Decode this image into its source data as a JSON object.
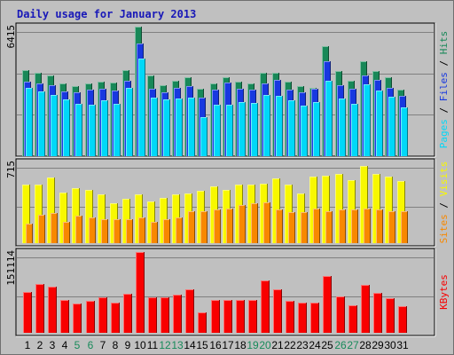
{
  "chart_data": [
    {
      "type": "bar",
      "title": "Daily usage for January 2013",
      "ymax_label": "6415",
      "legend": [
        "Pages",
        "Files",
        "Hits"
      ],
      "legend_colors": {
        "Pages": "#00d8f8",
        "Files": "#1838e0",
        "Hits": "#188858"
      },
      "ylim": [
        0,
        6415
      ],
      "categories": [
        "1",
        "2",
        "3",
        "4",
        "5",
        "6",
        "7",
        "8",
        "9",
        "10",
        "11",
        "12",
        "13",
        "14",
        "15",
        "16",
        "17",
        "18",
        "19",
        "20",
        "21",
        "22",
        "23",
        "24",
        "25",
        "26",
        "27",
        "28",
        "29",
        "30",
        "31"
      ],
      "weekend_days": [
        "5",
        "6",
        "12",
        "13",
        "19",
        "20",
        "26",
        "27"
      ],
      "series": [
        {
          "name": "Hits",
          "values": [
            4250,
            4150,
            3980,
            3600,
            3480,
            3600,
            3700,
            3650,
            4250,
            6415,
            4000,
            3500,
            3750,
            3900,
            3350,
            3600,
            3900,
            3700,
            3600,
            4150,
            4150,
            3700,
            3450,
            3400,
            5430,
            4200,
            3750,
            4700,
            4200,
            3900,
            3300
          ]
        },
        {
          "name": "Files",
          "values": [
            3700,
            3600,
            3500,
            3200,
            3150,
            3300,
            3350,
            3250,
            3750,
            5600,
            3350,
            3150,
            3400,
            3450,
            2900,
            3300,
            3650,
            3350,
            3300,
            3600,
            3800,
            3300,
            3150,
            3350,
            4700,
            3500,
            3350,
            4000,
            3800,
            3400,
            3000
          ]
        },
        {
          "name": "Pages",
          "values": [
            3400,
            3200,
            3050,
            2800,
            2600,
            2550,
            2750,
            2600,
            3400,
            4850,
            2900,
            2800,
            2850,
            2900,
            1950,
            2550,
            2550,
            2700,
            2650,
            3050,
            3000,
            2750,
            2500,
            2700,
            3750,
            2850,
            2600,
            3550,
            3250,
            2950,
            2400
          ]
        }
      ]
    },
    {
      "type": "bar",
      "ymax_label": "715",
      "legend": [
        "Sites",
        "Visits"
      ],
      "legend_colors": {
        "Sites": "#f88800",
        "Visits": "#f8f800"
      },
      "ylim": [
        0,
        715
      ],
      "categories": [
        "1",
        "2",
        "3",
        "4",
        "5",
        "6",
        "7",
        "8",
        "9",
        "10",
        "11",
        "12",
        "13",
        "14",
        "15",
        "16",
        "17",
        "18",
        "19",
        "20",
        "21",
        "22",
        "23",
        "24",
        "25",
        "26",
        "27",
        "28",
        "29",
        "30",
        "31"
      ],
      "series": [
        {
          "name": "Visits",
          "values": [
            520,
            520,
            580,
            450,
            490,
            470,
            430,
            350,
            390,
            430,
            370,
            400,
            430,
            440,
            460,
            500,
            470,
            520,
            520,
            530,
            570,
            520,
            440,
            590,
            600,
            610,
            560,
            680,
            610,
            590,
            550
          ]
        },
        {
          "name": "Sites",
          "values": [
            170,
            250,
            270,
            190,
            240,
            230,
            215,
            210,
            210,
            230,
            185,
            210,
            230,
            280,
            285,
            300,
            310,
            340,
            350,
            360,
            300,
            275,
            275,
            310,
            280,
            300,
            300,
            310,
            300,
            280,
            280
          ]
        }
      ]
    },
    {
      "type": "bar",
      "ymax_label": "151114",
      "legend": [
        "KBytes"
      ],
      "legend_colors": {
        "KBytes": "#f80000"
      },
      "ylim": [
        0,
        151114
      ],
      "categories": [
        "1",
        "2",
        "3",
        "4",
        "5",
        "6",
        "7",
        "8",
        "9",
        "10",
        "11",
        "12",
        "13",
        "14",
        "15",
        "16",
        "17",
        "18",
        "19",
        "20",
        "21",
        "22",
        "23",
        "24",
        "25",
        "26",
        "27",
        "28",
        "29",
        "30",
        "31"
      ],
      "series": [
        {
          "name": "KBytes",
          "values": [
            77000,
            91000,
            86000,
            62000,
            55000,
            60000,
            66000,
            56000,
            73000,
            151114,
            66000,
            66000,
            71000,
            81000,
            38000,
            62000,
            62000,
            62000,
            61000,
            98000,
            81000,
            60000,
            56000,
            56000,
            107000,
            68000,
            52000,
            90000,
            75000,
            64000,
            49000
          ]
        }
      ]
    }
  ],
  "colors": {
    "background": "#c0c0c0",
    "plot_bg": "#c0c0c0",
    "grid": "#808080",
    "title": "#1818b8",
    "axis_label": "#000000",
    "weekday_label": "#000000",
    "weekend_label": "#178a5a",
    "separator_slash": "#000000"
  }
}
